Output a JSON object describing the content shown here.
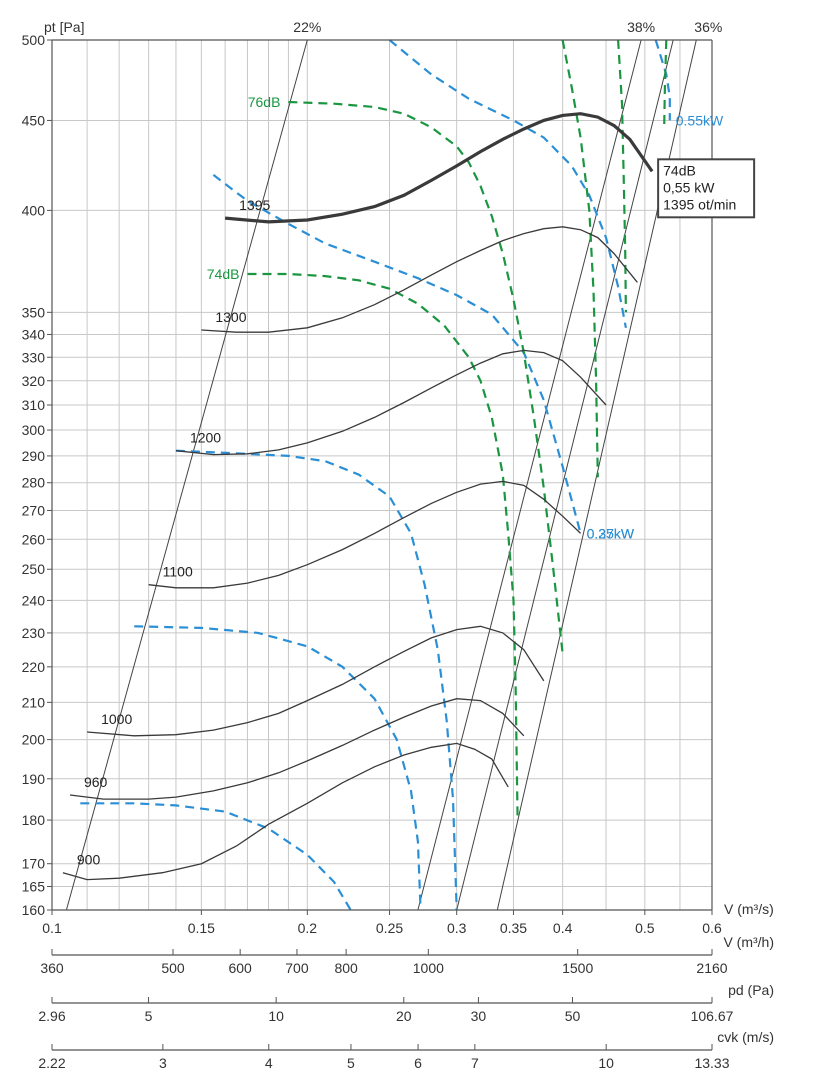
{
  "chart_data": {
    "type": "line",
    "x_scale": "log",
    "y_scale": "log",
    "xlim": [
      0.1,
      0.6
    ],
    "ylim": [
      160,
      500
    ],
    "xlabel": "V (m³/s)",
    "ylabel": "pt [Pa]",
    "x_ticks": [
      0.1,
      0.15,
      0.2,
      0.25,
      0.3,
      0.35,
      0.4,
      0.5,
      0.6
    ],
    "x_tick_labels": [
      "0.1",
      "0.15",
      "0.2",
      "0.25",
      "0.3",
      "0.35",
      "0.4",
      "0.5",
      "0.6"
    ],
    "x_minor_gridlines": [
      0.11,
      0.12,
      0.13,
      0.14,
      0.16,
      0.17,
      0.18,
      0.19,
      0.45,
      0.55
    ],
    "y_ticks": [
      160,
      165,
      170,
      180,
      190,
      200,
      210,
      220,
      230,
      240,
      250,
      260,
      270,
      280,
      290,
      300,
      310,
      320,
      330,
      340,
      350,
      400,
      450,
      500
    ],
    "grid": true,
    "speed_curves": [
      {
        "name": "900",
        "points": [
          [
            0.103,
            168
          ],
          [
            0.11,
            166.5
          ],
          [
            0.12,
            166.8
          ],
          [
            0.135,
            168
          ],
          [
            0.15,
            170
          ],
          [
            0.165,
            174
          ],
          [
            0.18,
            179
          ],
          [
            0.2,
            184
          ],
          [
            0.22,
            189
          ],
          [
            0.24,
            193
          ],
          [
            0.26,
            196
          ],
          [
            0.28,
            198
          ],
          [
            0.3,
            199
          ],
          [
            0.315,
            197.5
          ],
          [
            0.33,
            195
          ],
          [
            0.345,
            188
          ]
        ]
      },
      {
        "name": "960",
        "points": [
          [
            0.105,
            186
          ],
          [
            0.115,
            185
          ],
          [
            0.13,
            185
          ],
          [
            0.14,
            185.5
          ],
          [
            0.155,
            187
          ],
          [
            0.17,
            189
          ],
          [
            0.185,
            191.5
          ],
          [
            0.2,
            194.5
          ],
          [
            0.22,
            198.5
          ],
          [
            0.24,
            202.5
          ],
          [
            0.26,
            206
          ],
          [
            0.28,
            209
          ],
          [
            0.3,
            211
          ],
          [
            0.32,
            210.5
          ],
          [
            0.34,
            207
          ],
          [
            0.36,
            201
          ]
        ]
      },
      {
        "name": "1000",
        "points": [
          [
            0.11,
            202
          ],
          [
            0.125,
            201
          ],
          [
            0.14,
            201.3
          ],
          [
            0.155,
            202.5
          ],
          [
            0.17,
            204.5
          ],
          [
            0.185,
            207
          ],
          [
            0.2,
            210.5
          ],
          [
            0.22,
            215
          ],
          [
            0.24,
            220
          ],
          [
            0.26,
            224.5
          ],
          [
            0.28,
            228.5
          ],
          [
            0.3,
            231
          ],
          [
            0.32,
            232
          ],
          [
            0.34,
            230
          ],
          [
            0.36,
            225
          ],
          [
            0.38,
            216
          ]
        ]
      },
      {
        "name": "1100",
        "points": [
          [
            0.13,
            245
          ],
          [
            0.14,
            244
          ],
          [
            0.155,
            244
          ],
          [
            0.17,
            245.5
          ],
          [
            0.185,
            248
          ],
          [
            0.2,
            251.5
          ],
          [
            0.22,
            256.5
          ],
          [
            0.24,
            262
          ],
          [
            0.26,
            267.5
          ],
          [
            0.28,
            272.5
          ],
          [
            0.3,
            276.5
          ],
          [
            0.32,
            279.5
          ],
          [
            0.34,
            280.5
          ],
          [
            0.36,
            279
          ],
          [
            0.38,
            274
          ],
          [
            0.4,
            268
          ],
          [
            0.42,
            262
          ]
        ]
      },
      {
        "name": "1200",
        "points": [
          [
            0.14,
            292
          ],
          [
            0.155,
            290.5
          ],
          [
            0.17,
            290.8
          ],
          [
            0.185,
            292.3
          ],
          [
            0.2,
            295
          ],
          [
            0.22,
            299.5
          ],
          [
            0.24,
            305
          ],
          [
            0.26,
            311
          ],
          [
            0.28,
            317
          ],
          [
            0.3,
            322.5
          ],
          [
            0.32,
            327.5
          ],
          [
            0.34,
            331.5
          ],
          [
            0.36,
            333
          ],
          [
            0.38,
            332
          ],
          [
            0.4,
            328.5
          ],
          [
            0.42,
            321.5
          ],
          [
            0.45,
            310
          ]
        ]
      },
      {
        "name": "1300",
        "points": [
          [
            0.15,
            342
          ],
          [
            0.165,
            341
          ],
          [
            0.18,
            341
          ],
          [
            0.2,
            343
          ],
          [
            0.22,
            347.5
          ],
          [
            0.24,
            353.5
          ],
          [
            0.26,
            360.5
          ],
          [
            0.28,
            367.5
          ],
          [
            0.3,
            374
          ],
          [
            0.32,
            379.5
          ],
          [
            0.34,
            384.5
          ],
          [
            0.36,
            388
          ],
          [
            0.38,
            390.5
          ],
          [
            0.4,
            391.5
          ],
          [
            0.42,
            390
          ],
          [
            0.44,
            386
          ],
          [
            0.46,
            378
          ],
          [
            0.49,
            364
          ]
        ]
      },
      {
        "name": "1395",
        "bold": true,
        "points": [
          [
            0.16,
            396
          ],
          [
            0.18,
            394
          ],
          [
            0.2,
            395
          ],
          [
            0.22,
            398
          ],
          [
            0.24,
            402
          ],
          [
            0.26,
            408
          ],
          [
            0.28,
            416
          ],
          [
            0.3,
            424
          ],
          [
            0.32,
            432
          ],
          [
            0.34,
            439
          ],
          [
            0.36,
            445
          ],
          [
            0.38,
            450
          ],
          [
            0.4,
            453
          ],
          [
            0.42,
            454
          ],
          [
            0.44,
            452
          ],
          [
            0.46,
            447
          ],
          [
            0.48,
            439
          ],
          [
            0.51,
            421
          ]
        ]
      }
    ],
    "system_lines": [
      {
        "name": "22%",
        "points": [
          [
            0.104,
            160
          ],
          [
            0.2,
            500
          ]
        ]
      },
      {
        "name": "38%",
        "points": [
          [
            0.27,
            160
          ],
          [
            0.495,
            500
          ]
        ]
      },
      {
        "name": "36%",
        "points": [
          [
            0.335,
            160
          ],
          [
            0.575,
            500
          ]
        ]
      },
      {
        "name": "",
        "points": [
          [
            0.3,
            160
          ],
          [
            0.54,
            500
          ]
        ]
      }
    ],
    "noise_curves": [
      {
        "name": "76dB",
        "points": [
          [
            0.19,
            461
          ],
          [
            0.215,
            460
          ],
          [
            0.24,
            458
          ],
          [
            0.26,
            454
          ],
          [
            0.28,
            446
          ],
          [
            0.3,
            435
          ],
          [
            0.31,
            426
          ],
          [
            0.32,
            413
          ],
          [
            0.33,
            397
          ],
          [
            0.34,
            378
          ],
          [
            0.35,
            356
          ],
          [
            0.36,
            332
          ],
          [
            0.37,
            305
          ],
          [
            0.38,
            278
          ],
          [
            0.39,
            250
          ],
          [
            0.4,
            224
          ]
        ]
      },
      {
        "name": "74dB",
        "points": [
          [
            0.17,
            368
          ],
          [
            0.19,
            368
          ],
          [
            0.21,
            367
          ],
          [
            0.23,
            365
          ],
          [
            0.25,
            361
          ],
          [
            0.27,
            354
          ],
          [
            0.29,
            344
          ],
          [
            0.31,
            330
          ],
          [
            0.32,
            320
          ],
          [
            0.33,
            305
          ],
          [
            0.34,
            283
          ],
          [
            0.345,
            262
          ],
          [
            0.35,
            240
          ],
          [
            0.352,
            215
          ],
          [
            0.354,
            180
          ]
        ]
      },
      {
        "name": "",
        "points": [
          [
            0.4,
            500
          ],
          [
            0.41,
            470
          ],
          [
            0.42,
            440
          ],
          [
            0.43,
            400
          ],
          [
            0.435,
            360
          ],
          [
            0.438,
            320
          ],
          [
            0.44,
            282
          ]
        ]
      },
      {
        "name": "",
        "points": [
          [
            0.465,
            500
          ],
          [
            0.47,
            460
          ],
          [
            0.472,
            420
          ],
          [
            0.474,
            380
          ],
          [
            0.475,
            350
          ]
        ]
      },
      {
        "name": "",
        "points": [
          [
            0.53,
            500
          ],
          [
            0.528,
            470
          ],
          [
            0.527,
            447
          ]
        ]
      }
    ],
    "power_curves": [
      {
        "name": "0.55kW",
        "points": [
          [
            0.25,
            500
          ],
          [
            0.28,
            478
          ],
          [
            0.31,
            463
          ],
          [
            0.35,
            450
          ],
          [
            0.38,
            440
          ],
          [
            0.41,
            424
          ],
          [
            0.43,
            408
          ],
          [
            0.45,
            386
          ],
          [
            0.465,
            362
          ],
          [
            0.475,
            343
          ]
        ]
      },
      {
        "name": "0.37kW",
        "points": [
          [
            0.155,
            419
          ],
          [
            0.17,
            405
          ],
          [
            0.19,
            393
          ],
          [
            0.21,
            383
          ],
          [
            0.24,
            374
          ],
          [
            0.27,
            366
          ],
          [
            0.3,
            358
          ],
          [
            0.33,
            349
          ],
          [
            0.36,
            332
          ],
          [
            0.38,
            312
          ],
          [
            0.4,
            286
          ],
          [
            0.42,
            262
          ]
        ]
      },
      {
        "name": "0.25kW",
        "points": [
          [
            0.14,
            292
          ],
          [
            0.165,
            291
          ],
          [
            0.19,
            290
          ],
          [
            0.21,
            288
          ],
          [
            0.23,
            283
          ],
          [
            0.25,
            275
          ],
          [
            0.265,
            262
          ],
          [
            0.275,
            245
          ],
          [
            0.285,
            225
          ],
          [
            0.292,
            205
          ],
          [
            0.297,
            185
          ],
          [
            0.3,
            160
          ]
        ]
      },
      {
        "name": "",
        "points": [
          [
            0.125,
            232
          ],
          [
            0.15,
            231.5
          ],
          [
            0.175,
            230
          ],
          [
            0.2,
            226
          ],
          [
            0.22,
            220
          ],
          [
            0.24,
            211
          ],
          [
            0.255,
            200
          ],
          [
            0.265,
            187
          ],
          [
            0.27,
            175
          ],
          [
            0.272,
            160
          ]
        ]
      },
      {
        "name": "",
        "points": [
          [
            0.108,
            184
          ],
          [
            0.125,
            184
          ],
          [
            0.14,
            183.5
          ],
          [
            0.16,
            182
          ],
          [
            0.18,
            178
          ],
          [
            0.2,
            172
          ],
          [
            0.215,
            166
          ],
          [
            0.225,
            160
          ]
        ]
      },
      {
        "name": "",
        "points": [
          [
            0.515,
            500
          ],
          [
            0.53,
            478
          ],
          [
            0.535,
            464
          ],
          [
            0.535,
            450
          ]
        ]
      }
    ],
    "line_labels": {
      "curve_labels": [
        "900",
        "960",
        "1000",
        "1100",
        "1200",
        "1300",
        "1395"
      ],
      "top_percent": [
        "22%",
        "38%",
        "36%"
      ],
      "noise": [
        "76dB",
        "74dB"
      ],
      "power": [
        "0.55kW",
        "0.37kW",
        "0.25kW"
      ]
    },
    "info_box": [
      "74dB",
      "0,55 kW",
      "1395 ot/min"
    ],
    "secondary_axes": [
      {
        "label": "V (m³/h)",
        "ticks": [
          "360",
          "500",
          "600",
          "700",
          "800",
          "1000",
          "1500",
          "2160"
        ],
        "values": [
          360,
          500,
          600,
          700,
          800,
          1000,
          1500,
          2160
        ]
      },
      {
        "label": "pd (Pa)",
        "ticks": [
          "2.96",
          "5",
          "10",
          "20",
          "30",
          "50",
          "106.67"
        ],
        "values": [
          2.96,
          5,
          10,
          20,
          30,
          50,
          106.67
        ]
      },
      {
        "label": "cvk (m/s)",
        "ticks": [
          "2.22",
          "3",
          "4",
          "5",
          "6",
          "7",
          "10",
          "13.33"
        ],
        "values": [
          2.22,
          3,
          4,
          5,
          6,
          7,
          10,
          13.33
        ]
      }
    ]
  },
  "colors": {
    "speed": "#3a3a3a",
    "grid": "#c8c8c8",
    "noise": "#1a9641",
    "power": "#2b8fd6",
    "axis": "#555555"
  }
}
